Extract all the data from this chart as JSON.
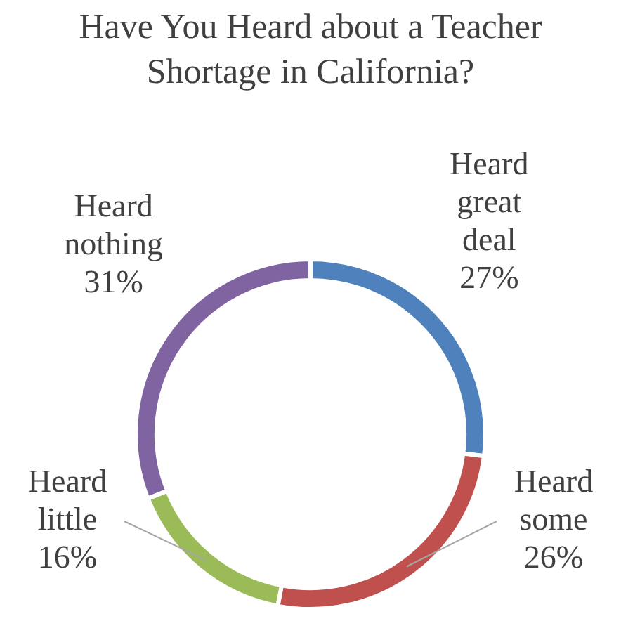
{
  "chart_data": {
    "type": "donut",
    "title": "Have You Heard about a Teacher Shortage in California?",
    "categories": [
      "Heard great deal",
      "Heard some",
      "Heard little",
      "Heard nothing"
    ],
    "values": [
      27,
      26,
      16,
      31
    ],
    "colors": [
      "#4f81bd",
      "#c0504d",
      "#9bbb59",
      "#8064a2"
    ],
    "value_labels": [
      "27%",
      "26%",
      "16%",
      "31%"
    ]
  }
}
